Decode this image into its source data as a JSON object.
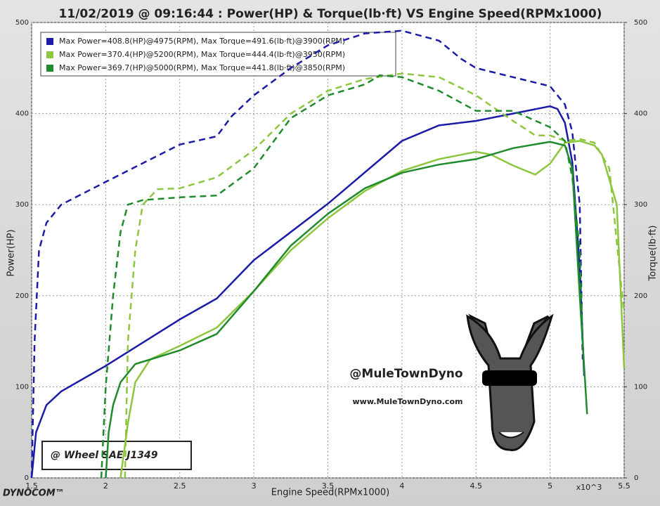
{
  "chart_data": {
    "type": "line",
    "title": "11/02/2019 @ 09:16:44 : Power(HP) & Torque(lb·ft) VS Engine Speed(RPMx1000)",
    "x_label": "Engine Speed(RPMx1000)",
    "x_unit": "x10^3",
    "y_label": "Power(HP)",
    "y2_label": "Torque(lb·ft)",
    "xlim": [
      1.5,
      5.5
    ],
    "xticks": [
      1.5,
      2,
      2.5,
      3,
      3.5,
      4,
      4.5,
      5,
      5.5
    ],
    "ylim": [
      0,
      500
    ],
    "yticks": [
      0,
      100,
      200,
      300,
      400,
      500
    ],
    "y2lim": [
      0,
      500
    ],
    "y2ticks": [
      0,
      100,
      200,
      300,
      400,
      500
    ],
    "grid": true,
    "legend_position": "top-left",
    "legend": [
      {
        "label": "Max Power=408.8(HP)@4975(RPM), Max Torque=491.6(lb·ft)@3900(RPM)",
        "color": "#1c1ca8"
      },
      {
        "label": "Max Power=370.4(HP)@5200(RPM), Max Torque=444.4(lb·ft)@3950(RPM)",
        "color": "#8dc63f"
      },
      {
        "label": "Max Power=369.7(HP)@5000(RPM), Max Torque=441.8(lb·ft)@3850(RPM)",
        "color": "#1f8b2c"
      }
    ],
    "series": [
      {
        "color": "#1c1ca8",
        "dashed": false,
        "axis": "y",
        "x": [
          1.5,
          1.53,
          1.6,
          1.7,
          2.0,
          2.5,
          2.75,
          3.0,
          3.5,
          4.0,
          4.25,
          4.5,
          4.75,
          5.0,
          5.05,
          5.1,
          5.15,
          5.2,
          5.23
        ],
        "values": [
          0,
          50,
          80,
          95,
          123,
          174,
          197,
          239,
          301,
          370,
          387,
          392,
          400,
          408,
          405,
          390,
          347,
          231,
          112
        ]
      },
      {
        "color": "#1c1ca8",
        "dashed": true,
        "axis": "y2",
        "x": [
          1.5,
          1.52,
          1.55,
          1.6,
          1.7,
          2.0,
          2.5,
          2.75,
          2.85,
          3.0,
          3.25,
          3.5,
          3.75,
          4.0,
          4.25,
          4.4,
          4.5,
          4.75,
          5.0,
          5.1,
          5.15,
          5.2,
          5.22
        ],
        "values": [
          0,
          150,
          250,
          280,
          300,
          325,
          366,
          375,
          397,
          420,
          450,
          475,
          488,
          491,
          480,
          460,
          450,
          440,
          430,
          410,
          380,
          300,
          130
        ]
      },
      {
        "color": "#8dc63f",
        "dashed": false,
        "axis": "y",
        "x": [
          2.1,
          2.15,
          2.2,
          2.3,
          2.5,
          2.75,
          3.0,
          3.25,
          3.5,
          3.75,
          4.0,
          4.25,
          4.5,
          4.6,
          4.75,
          4.9,
          5.0,
          5.1,
          5.2,
          5.3,
          5.35,
          5.45,
          5.5
        ],
        "values": [
          0,
          60,
          105,
          130,
          145,
          165,
          205,
          250,
          285,
          315,
          337,
          350,
          358,
          355,
          343,
          333,
          345,
          368,
          370,
          365,
          355,
          300,
          120
        ]
      },
      {
        "color": "#8dc63f",
        "dashed": true,
        "axis": "y2",
        "x": [
          2.13,
          2.15,
          2.2,
          2.25,
          2.35,
          2.5,
          2.75,
          3.0,
          3.25,
          3.5,
          3.75,
          4.0,
          4.25,
          4.5,
          4.75,
          4.9,
          5.0,
          5.1,
          5.2,
          5.3,
          5.4,
          5.5
        ],
        "values": [
          0,
          150,
          250,
          300,
          317,
          318,
          330,
          360,
          400,
          425,
          438,
          444,
          440,
          420,
          392,
          376,
          376,
          370,
          372,
          368,
          340,
          180
        ]
      },
      {
        "color": "#1f8b2c",
        "dashed": false,
        "axis": "y",
        "x": [
          2.0,
          2.02,
          2.05,
          2.1,
          2.2,
          2.5,
          2.75,
          3.0,
          3.25,
          3.5,
          3.75,
          4.0,
          4.25,
          4.5,
          4.75,
          5.0,
          5.1,
          5.15,
          5.2,
          5.25
        ],
        "values": [
          0,
          50,
          80,
          105,
          125,
          140,
          158,
          205,
          255,
          290,
          318,
          335,
          344,
          350,
          362,
          369,
          365,
          340,
          200,
          70
        ]
      },
      {
        "color": "#1f8b2c",
        "dashed": true,
        "axis": "y2",
        "x": [
          1.97,
          2.0,
          2.05,
          2.1,
          2.15,
          2.25,
          2.5,
          2.75,
          3.0,
          3.25,
          3.5,
          3.75,
          3.85,
          4.0,
          4.25,
          4.5,
          4.75,
          5.0,
          5.1,
          5.15,
          5.2,
          5.22
        ],
        "values": [
          0,
          100,
          200,
          270,
          300,
          305,
          308,
          310,
          340,
          395,
          420,
          432,
          442,
          440,
          425,
          403,
          403,
          385,
          370,
          330,
          250,
          150
        ]
      }
    ],
    "annotations": {
      "test": "@ Wheel SAE J1349",
      "handle": "@MuleTownDyno",
      "url": "www.MuleTownDyno.com",
      "brand": "DYNOCOM™"
    }
  }
}
